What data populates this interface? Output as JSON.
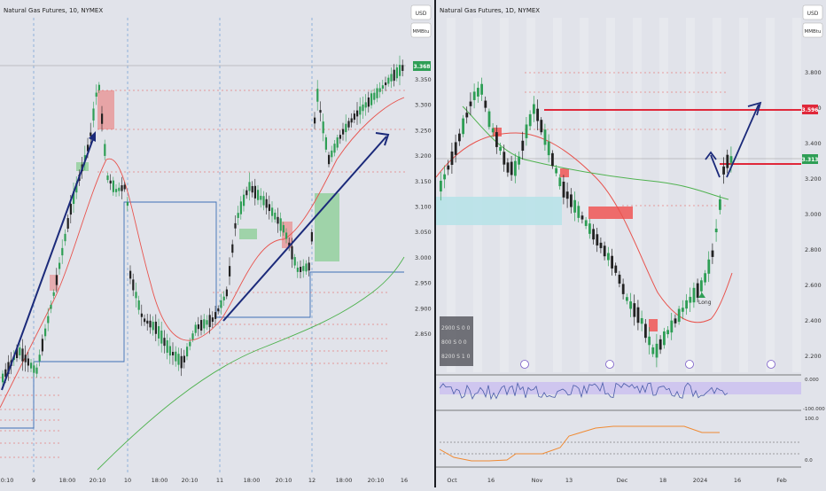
{
  "left_chart": {
    "title": "Natural Gas Futures, 10, NYMEX",
    "currency_label": "USD",
    "unit_label": "MMBtu",
    "price_badge": "3.368",
    "y_ticks": [
      "3.350",
      "3.300",
      "3.250",
      "3.200",
      "3.150",
      "3.100",
      "3.050",
      "3.000",
      "2.950",
      "2.900",
      "2.850"
    ],
    "x_ticks": [
      "20:10",
      "9",
      "18:00",
      "20:10",
      "10",
      "18:00",
      "20:10",
      "11",
      "18:00",
      "20:10",
      "12",
      "18:00",
      "20:10",
      "16"
    ],
    "colors": {
      "up": "#2e9e55",
      "down": "#222222",
      "fast_ma": "#e8534d",
      "slow_ma": "#4fb24f",
      "arrow": "#1b2a7a",
      "level": "#3d6fb6",
      "zone_green": "#8fce98",
      "zone_red": "#e89495"
    }
  },
  "right_chart": {
    "title": "Natural Gas Futures, 1D, NYMEX",
    "currency_label": "USD",
    "unit_label": "MMBtu",
    "price_badge_top": "3.596",
    "price_badge_mid": "3.313",
    "y_ticks": [
      "3.800",
      "3.600",
      "3.400",
      "3.200",
      "3.000",
      "2.800",
      "2.600",
      "2.400",
      "2.200"
    ],
    "x_ticks": [
      "Oct",
      "16",
      "Nov",
      "13",
      "Dec",
      "18",
      "2024",
      "16",
      "Feb"
    ],
    "long_label": "Long",
    "stats_box": [
      "2900 S 0 0",
      "800 S 0 0",
      "8200 S 1 0"
    ],
    "osc1_ticks": [
      "0.000",
      "-100.000"
    ],
    "osc2_ticks": [
      "100.0",
      "0.0"
    ],
    "colors": {
      "up": "#2e9e55",
      "down": "#222222",
      "fast_ma": "#e8534d",
      "slow_ma": "#4fb24f",
      "arrow": "#1b2a7a",
      "resistance": "#e0283a",
      "zone_cyan": "#b8e2e8",
      "zone_red": "#ee6b6b",
      "osc_bg": "#cfc6ef",
      "osc_line": "#4a5da8",
      "osc2_line": "#f08a32"
    }
  }
}
